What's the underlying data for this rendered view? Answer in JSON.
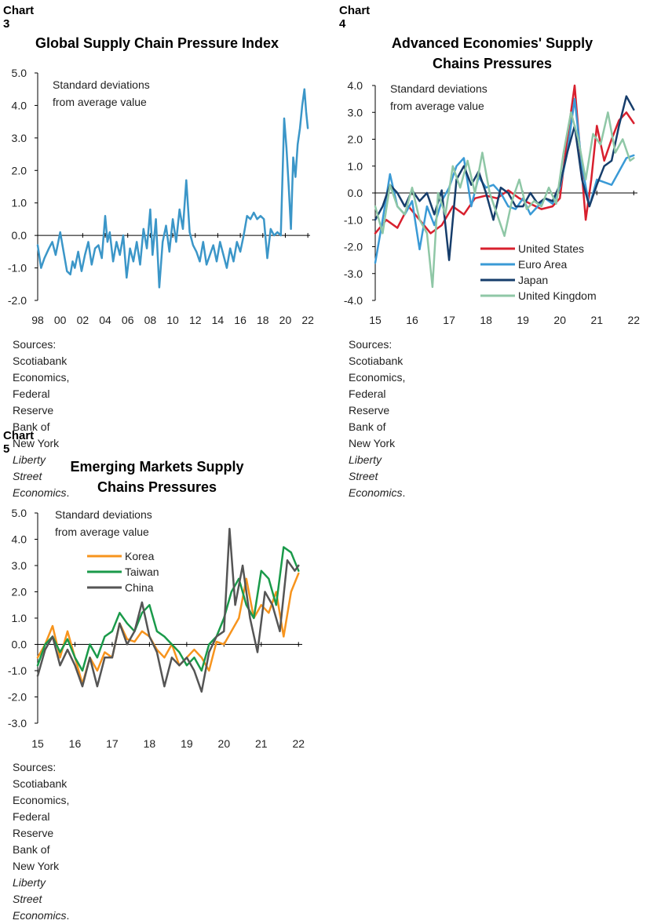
{
  "colors": {
    "single_series": "#3b96c8",
    "us": "#d8202e",
    "euro": "#3a9ad6",
    "japan": "#163d6b",
    "uk": "#8fc7a6",
    "korea": "#f7941d",
    "taiwan": "#1a9a4a",
    "china": "#555555",
    "axis": "#000000"
  },
  "chart_data": [
    {
      "type": "line",
      "label": "Chart 3",
      "title": "Global Supply Chain Pressure Index",
      "annotation": [
        "Standard deviations",
        "from average value"
      ],
      "xlabel": "",
      "ylabel": "",
      "xlim": [
        1998,
        2022.2
      ],
      "ylim": [
        -2.0,
        5.0
      ],
      "yticks": [
        "5.0",
        "4.0",
        "3.0",
        "2.0",
        "1.0",
        "0.0",
        "-1.0",
        "-2.0"
      ],
      "ytick_values": [
        5,
        4,
        3,
        2,
        1,
        0,
        -1,
        -2
      ],
      "xtick_labels": [
        "98",
        "00",
        "02",
        "04",
        "06",
        "08",
        "10",
        "12",
        "14",
        "16",
        "18",
        "20",
        "22"
      ],
      "xtick_values": [
        1998,
        2000,
        2002,
        2004,
        2006,
        2008,
        2010,
        2012,
        2014,
        2016,
        2018,
        2020,
        2022
      ],
      "source": "Sources: Scotiabank Economics, Federal Reserve",
      "source_line2_prefix": "Bank of New York ",
      "source_line2_italic": "Liberty Street Economics",
      "source_line2_suffix": ".",
      "series": [
        {
          "color_key": "single_series",
          "x": [
            1998.0,
            1998.3,
            1998.6,
            1999.0,
            1999.3,
            1999.6,
            2000.0,
            2000.3,
            2000.6,
            2000.9,
            2001.1,
            2001.3,
            2001.6,
            2001.9,
            2002.2,
            2002.5,
            2002.8,
            2003.1,
            2003.4,
            2003.7,
            2004.0,
            2004.2,
            2004.4,
            2004.7,
            2005.0,
            2005.3,
            2005.6,
            2005.9,
            2006.2,
            2006.5,
            2006.8,
            2007.1,
            2007.4,
            2007.7,
            2008.0,
            2008.2,
            2008.5,
            2008.8,
            2009.1,
            2009.4,
            2009.7,
            2010.0,
            2010.3,
            2010.6,
            2010.9,
            2011.2,
            2011.5,
            2011.8,
            2012.1,
            2012.4,
            2012.7,
            2013.0,
            2013.3,
            2013.6,
            2013.9,
            2014.2,
            2014.5,
            2014.8,
            2015.1,
            2015.4,
            2015.7,
            2016.0,
            2016.3,
            2016.6,
            2016.9,
            2017.2,
            2017.5,
            2017.8,
            2018.1,
            2018.4,
            2018.7,
            2019.0,
            2019.3,
            2019.6,
            2019.9,
            2020.1,
            2020.3,
            2020.5,
            2020.7,
            2020.9,
            2021.1,
            2021.3,
            2021.5,
            2021.7,
            2021.85,
            2022.0
          ],
          "y": [
            -0.3,
            -1.0,
            -0.7,
            -0.4,
            -0.2,
            -0.6,
            0.1,
            -0.5,
            -1.1,
            -1.2,
            -0.8,
            -1.0,
            -0.5,
            -1.1,
            -0.6,
            -0.2,
            -0.9,
            -0.4,
            -0.3,
            -0.7,
            0.6,
            -0.2,
            0.1,
            -0.8,
            -0.2,
            -0.6,
            0.0,
            -1.3,
            -0.4,
            -0.8,
            -0.2,
            -0.9,
            0.2,
            -0.4,
            0.8,
            -0.6,
            0.5,
            -1.6,
            -0.2,
            0.3,
            -0.5,
            0.5,
            -0.2,
            0.8,
            0.2,
            1.7,
            0.1,
            -0.3,
            -0.5,
            -0.8,
            -0.2,
            -0.9,
            -0.6,
            -0.3,
            -0.8,
            -0.2,
            -0.6,
            -1.0,
            -0.4,
            -0.8,
            -0.2,
            -0.5,
            0.0,
            0.6,
            0.5,
            0.7,
            0.5,
            0.6,
            0.5,
            -0.7,
            0.2,
            0.0,
            0.1,
            0.0,
            3.6,
            2.7,
            1.5,
            0.2,
            2.4,
            1.8,
            2.8,
            3.3,
            4.0,
            4.5,
            3.8,
            3.3
          ]
        }
      ]
    },
    {
      "type": "line",
      "label": "Chart 4",
      "title": "Advanced Economies' Supply Chains Pressures",
      "title_lines": [
        "Advanced Economies' Supply",
        "Chains Pressures"
      ],
      "annotation": [
        "Standard deviations",
        "from average value"
      ],
      "xlabel": "",
      "ylabel": "",
      "xlim": [
        2015,
        2022.1
      ],
      "ylim": [
        -4.0,
        4.0
      ],
      "yticks": [
        "4.0",
        "3.0",
        "2.0",
        "1.0",
        "0.0",
        "-1.0",
        "-2.0",
        "-3.0",
        "-4.0"
      ],
      "ytick_values": [
        4,
        3,
        2,
        1,
        0,
        -1,
        -2,
        -3,
        -4
      ],
      "xtick_labels": [
        "15",
        "16",
        "17",
        "18",
        "19",
        "20",
        "21",
        "22"
      ],
      "xtick_values": [
        2015,
        2016,
        2017,
        2018,
        2019,
        2020,
        2021,
        2022
      ],
      "legend": "bottom-right",
      "source": "Sources: Scotiabank Economics, Federal Reserve",
      "source_line2_prefix": "Bank of New York ",
      "source_line2_italic": "Liberty Street Economics",
      "source_line2_suffix": ".",
      "series": [
        {
          "name": "United States",
          "color_key": "us",
          "x": [
            2015.0,
            2015.3,
            2015.6,
            2015.9,
            2016.2,
            2016.5,
            2016.8,
            2017.1,
            2017.4,
            2017.7,
            2018.0,
            2018.3,
            2018.6,
            2018.9,
            2019.2,
            2019.5,
            2019.8,
            2020.0,
            2020.2,
            2020.4,
            2020.55,
            2020.7,
            2020.85,
            2021.0,
            2021.2,
            2021.4,
            2021.6,
            2021.8,
            2022.0
          ],
          "y": [
            -1.5,
            -1.0,
            -1.3,
            -0.5,
            -1.0,
            -1.5,
            -1.2,
            -0.5,
            -0.8,
            -0.2,
            -0.1,
            -0.2,
            0.1,
            -0.2,
            -0.4,
            -0.6,
            -0.5,
            -0.2,
            2.0,
            4.0,
            1.5,
            -1.0,
            0.5,
            2.5,
            1.2,
            2.0,
            2.7,
            3.0,
            2.6
          ]
        },
        {
          "name": "Euro Area",
          "color_key": "euro",
          "x": [
            2015.0,
            2015.2,
            2015.4,
            2015.6,
            2015.8,
            2016.0,
            2016.2,
            2016.4,
            2016.6,
            2016.8,
            2017.0,
            2017.2,
            2017.4,
            2017.6,
            2017.8,
            2018.0,
            2018.2,
            2018.4,
            2018.6,
            2018.8,
            2019.0,
            2019.2,
            2019.4,
            2019.6,
            2019.8,
            2020.0,
            2020.2,
            2020.4,
            2020.6,
            2020.8,
            2021.0,
            2021.2,
            2021.4,
            2021.6,
            2021.8,
            2022.0
          ],
          "y": [
            -2.6,
            -1.0,
            0.7,
            -0.5,
            -0.8,
            -0.3,
            -2.1,
            -0.5,
            -1.2,
            -0.3,
            0.2,
            1.0,
            1.3,
            -0.5,
            0.6,
            0.2,
            0.3,
            0.0,
            -0.5,
            -0.6,
            -0.2,
            -0.8,
            -0.5,
            -0.2,
            -0.4,
            0.2,
            1.5,
            3.5,
            1.0,
            -0.5,
            0.5,
            0.4,
            0.3,
            0.8,
            1.3,
            1.4
          ]
        },
        {
          "name": "Japan",
          "color_key": "japan",
          "x": [
            2015.0,
            2015.2,
            2015.4,
            2015.6,
            2015.8,
            2016.0,
            2016.2,
            2016.4,
            2016.6,
            2016.8,
            2017.0,
            2017.2,
            2017.4,
            2017.6,
            2017.8,
            2018.0,
            2018.2,
            2018.4,
            2018.6,
            2018.8,
            2019.0,
            2019.2,
            2019.4,
            2019.6,
            2019.8,
            2020.0,
            2020.2,
            2020.4,
            2020.6,
            2020.8,
            2021.0,
            2021.2,
            2021.4,
            2021.6,
            2021.8,
            2022.0
          ],
          "y": [
            -1.0,
            -0.5,
            0.3,
            0.0,
            -0.5,
            0.1,
            -0.3,
            0.0,
            -0.8,
            0.1,
            -2.5,
            0.5,
            1.0,
            0.3,
            0.8,
            0.0,
            -1.0,
            0.2,
            0.0,
            -0.5,
            -0.5,
            0.0,
            -0.4,
            -0.2,
            -0.3,
            0.3,
            1.5,
            2.5,
            0.5,
            -0.5,
            0.3,
            1.0,
            1.2,
            2.5,
            3.6,
            3.1
          ]
        },
        {
          "name": "United Kingdom",
          "color_key": "uk",
          "x": [
            2015.0,
            2015.2,
            2015.4,
            2015.6,
            2015.8,
            2016.0,
            2016.2,
            2016.4,
            2016.55,
            2016.7,
            2016.9,
            2017.1,
            2017.3,
            2017.5,
            2017.7,
            2017.9,
            2018.1,
            2018.3,
            2018.5,
            2018.7,
            2018.9,
            2019.1,
            2019.3,
            2019.5,
            2019.7,
            2019.9,
            2020.1,
            2020.3,
            2020.5,
            2020.7,
            2020.9,
            2021.1,
            2021.3,
            2021.5,
            2021.7,
            2021.9,
            2022.0
          ],
          "y": [
            -0.5,
            -1.5,
            0.3,
            -0.5,
            -0.8,
            0.2,
            -1.0,
            -1.5,
            -3.5,
            0.0,
            -0.8,
            1.0,
            0.2,
            1.2,
            0.0,
            1.5,
            0.0,
            -0.8,
            -1.6,
            -0.3,
            0.5,
            -0.6,
            -0.3,
            -0.5,
            0.2,
            -0.4,
            1.5,
            3.0,
            2.0,
            0.5,
            2.2,
            1.8,
            3.0,
            1.5,
            2.0,
            1.2,
            1.3
          ]
        }
      ]
    },
    {
      "type": "line",
      "label": "Chart 5",
      "title": "Emerging Markets Supply Chains Pressures",
      "title_lines": [
        "Emerging Markets Supply",
        "Chains Pressures"
      ],
      "annotation": [
        "Standard deviations",
        "from average value"
      ],
      "xlabel": "",
      "ylabel": "",
      "xlim": [
        2015,
        2022.1
      ],
      "ylim": [
        -3.0,
        5.0
      ],
      "yticks": [
        "5.0",
        "4.0",
        "3.0",
        "2.0",
        "1.0",
        "0.0",
        "-1.0",
        "-2.0",
        "-3.0"
      ],
      "ytick_values": [
        5,
        4,
        3,
        2,
        1,
        0,
        -1,
        -2,
        -3
      ],
      "xtick_labels": [
        "15",
        "16",
        "17",
        "18",
        "19",
        "20",
        "21",
        "22"
      ],
      "xtick_values": [
        2015,
        2016,
        2017,
        2018,
        2019,
        2020,
        2021,
        2022
      ],
      "legend": "top-left",
      "source": "Sources: Scotiabank Economics, Federal Reserve",
      "source_line2_prefix": "Bank of New York ",
      "source_line2_italic": "Liberty Street Economics",
      "source_line2_suffix": ".",
      "series": [
        {
          "name": "Korea",
          "color_key": "korea",
          "x": [
            2015.0,
            2015.2,
            2015.4,
            2015.6,
            2015.8,
            2016.0,
            2016.2,
            2016.4,
            2016.6,
            2016.8,
            2017.0,
            2017.2,
            2017.4,
            2017.6,
            2017.8,
            2018.0,
            2018.2,
            2018.4,
            2018.6,
            2018.8,
            2019.0,
            2019.2,
            2019.4,
            2019.6,
            2019.8,
            2020.0,
            2020.2,
            2020.4,
            2020.6,
            2020.8,
            2021.0,
            2021.2,
            2021.4,
            2021.6,
            2021.8,
            2022.0
          ],
          "y": [
            -0.5,
            0.0,
            0.7,
            -0.5,
            0.5,
            -0.5,
            -1.5,
            -0.5,
            -1.0,
            -0.3,
            -0.5,
            0.8,
            0.2,
            0.1,
            0.5,
            0.3,
            -0.2,
            -0.5,
            0.0,
            -0.8,
            -0.5,
            -0.2,
            -0.5,
            -1.0,
            0.1,
            0.0,
            0.5,
            1.0,
            2.5,
            1.0,
            1.5,
            1.2,
            2.0,
            0.3,
            2.0,
            2.7
          ]
        },
        {
          "name": "Taiwan",
          "color_key": "taiwan",
          "x": [
            2015.0,
            2015.2,
            2015.4,
            2015.6,
            2015.8,
            2016.0,
            2016.2,
            2016.4,
            2016.6,
            2016.8,
            2017.0,
            2017.2,
            2017.4,
            2017.6,
            2017.8,
            2018.0,
            2018.2,
            2018.4,
            2018.6,
            2018.8,
            2019.0,
            2019.2,
            2019.4,
            2019.6,
            2019.8,
            2020.0,
            2020.2,
            2020.4,
            2020.6,
            2020.8,
            2021.0,
            2021.2,
            2021.4,
            2021.6,
            2021.8,
            2022.0
          ],
          "y": [
            -0.8,
            0.0,
            0.3,
            -0.3,
            0.2,
            -0.5,
            -1.0,
            0.0,
            -0.5,
            0.3,
            0.5,
            1.2,
            0.8,
            0.5,
            1.2,
            1.5,
            0.5,
            0.3,
            0.0,
            -0.3,
            -0.8,
            -0.5,
            -1.0,
            0.0,
            0.3,
            1.0,
            2.0,
            2.5,
            1.5,
            1.0,
            2.8,
            2.5,
            1.5,
            3.7,
            3.5,
            2.8
          ]
        },
        {
          "name": "China",
          "color_key": "china",
          "x": [
            2015.0,
            2015.2,
            2015.4,
            2015.6,
            2015.8,
            2016.0,
            2016.2,
            2016.4,
            2016.6,
            2016.8,
            2017.0,
            2017.2,
            2017.4,
            2017.6,
            2017.8,
            2018.0,
            2018.2,
            2018.4,
            2018.6,
            2018.8,
            2019.0,
            2019.2,
            2019.4,
            2019.6,
            2019.8,
            2020.0,
            2020.15,
            2020.3,
            2020.5,
            2020.7,
            2020.9,
            2021.1,
            2021.3,
            2021.5,
            2021.7,
            2021.9,
            2022.0
          ],
          "y": [
            -1.2,
            -0.2,
            0.3,
            -0.8,
            -0.2,
            -0.8,
            -1.6,
            -0.5,
            -1.6,
            -0.5,
            -0.5,
            0.8,
            0.0,
            0.5,
            1.6,
            0.3,
            -0.3,
            -1.6,
            -0.5,
            -0.8,
            -0.5,
            -1.0,
            -1.8,
            -0.3,
            0.3,
            0.5,
            4.4,
            1.5,
            3.0,
            1.0,
            -0.3,
            2.0,
            1.5,
            0.5,
            3.2,
            2.8,
            3.0
          ]
        }
      ]
    }
  ]
}
